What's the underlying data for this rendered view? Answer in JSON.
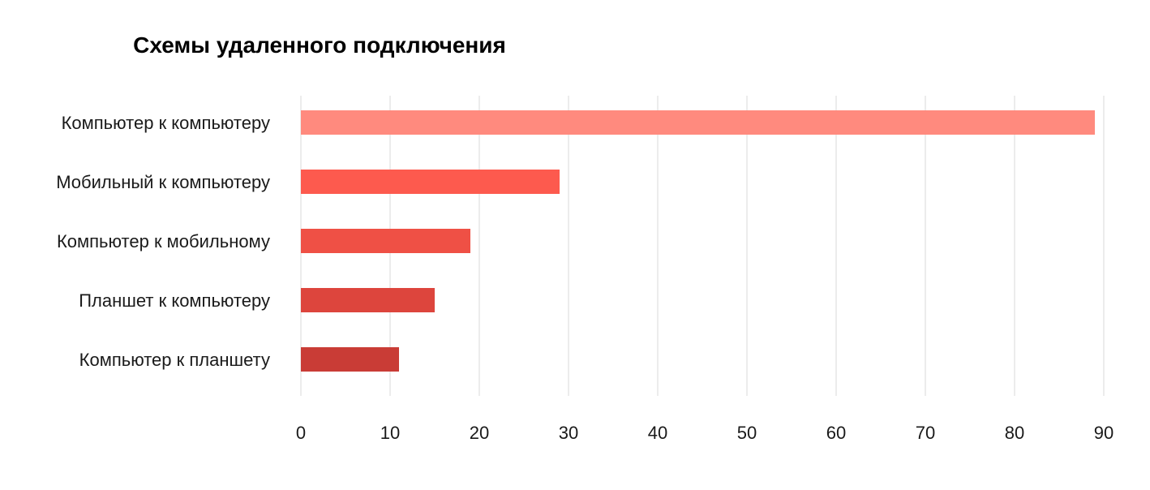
{
  "chart_data": {
    "type": "bar",
    "orientation": "horizontal",
    "title": "Схемы удаленного подключения",
    "xlabel": "",
    "ylabel": "",
    "categories": [
      "Компьютер к компьютеру",
      "Мобильный к компьютеру",
      "Компьютер к мобильному",
      "Планшет к компьютеру",
      "Компьютер к планшету"
    ],
    "values": [
      89,
      29,
      19,
      15,
      11
    ],
    "colors": [
      "#ff8a7e",
      "#fd5a4e",
      "#ef5045",
      "#dd453d",
      "#c93c36"
    ],
    "xlim": [
      0,
      90
    ],
    "xticks": [
      "0",
      "10",
      "20",
      "30",
      "40",
      "50",
      "60",
      "70",
      "80",
      "90"
    ],
    "grid": "vertical",
    "legend": "none"
  }
}
